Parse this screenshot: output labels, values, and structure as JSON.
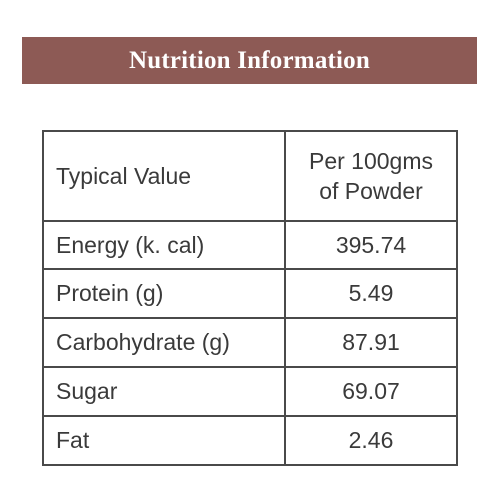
{
  "banner": {
    "title": "Nutrition Information",
    "background_color": "#8d5a55",
    "text_color": "#ffffff"
  },
  "table": {
    "header": {
      "label": "Typical Value",
      "value_line1": "Per 100gms",
      "value_line2": "of Powder"
    },
    "rows": [
      {
        "label": "Energy (k. cal)",
        "value": "395.74"
      },
      {
        "label": "Protein (g)",
        "value": "5.49"
      },
      {
        "label": "Carbohydrate (g)",
        "value": "87.91"
      },
      {
        "label": "Sugar",
        "value": "69.07"
      },
      {
        "label": "Fat",
        "value": "2.46"
      }
    ],
    "border_color": "#4a4a4a"
  }
}
